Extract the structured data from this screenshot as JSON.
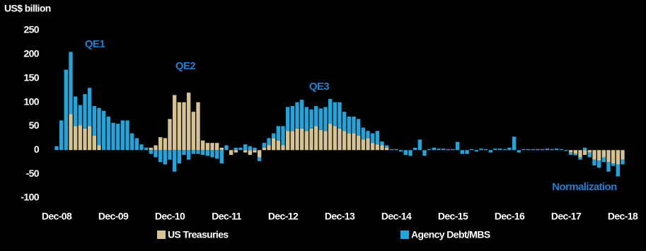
{
  "chart_data": {
    "type": "stacked_bar",
    "y_label": "US$ billion",
    "annotations": [
      "QE1",
      "QE2",
      "QE3",
      "Normalization"
    ],
    "categories": [
      "Dec-08",
      null,
      null,
      null,
      null,
      null,
      null,
      null,
      null,
      null,
      null,
      null,
      "Dec-09",
      null,
      null,
      null,
      null,
      null,
      null,
      null,
      null,
      null,
      null,
      null,
      "Dec-10",
      null,
      null,
      null,
      null,
      null,
      null,
      null,
      null,
      null,
      null,
      null,
      "Dec-11",
      null,
      null,
      null,
      null,
      null,
      null,
      null,
      null,
      null,
      null,
      null,
      "Dec-12",
      null,
      null,
      null,
      null,
      null,
      null,
      null,
      null,
      null,
      null,
      null,
      "Dec-13",
      null,
      null,
      null,
      null,
      null,
      null,
      null,
      null,
      null,
      null,
      null,
      "Dec-14",
      null,
      null,
      null,
      null,
      null,
      null,
      null,
      null,
      null,
      null,
      null,
      "Dec-15",
      null,
      null,
      null,
      null,
      null,
      null,
      null,
      null,
      null,
      null,
      null,
      "Dec-16",
      null,
      null,
      null,
      null,
      null,
      null,
      null,
      null,
      null,
      null,
      null,
      "Dec-17",
      null,
      null,
      null,
      null,
      null,
      null,
      null,
      null,
      null,
      null,
      null,
      "Dec-18"
    ],
    "series": [
      {
        "name": "US Treasuries",
        "color": "#d6c38f",
        "values": [
          0,
          0,
          0,
          75,
          50,
          52,
          45,
          50,
          30,
          10,
          0,
          0,
          0,
          0,
          0,
          0,
          0,
          0,
          0,
          0,
          5,
          10,
          27,
          25,
          65,
          115,
          100,
          100,
          120,
          80,
          100,
          20,
          15,
          15,
          15,
          5,
          0,
          -10,
          -5,
          0,
          -5,
          -10,
          -5,
          -15,
          5,
          10,
          25,
          20,
          10,
          40,
          40,
          45,
          45,
          40,
          45,
          50,
          42,
          40,
          55,
          50,
          45,
          40,
          35,
          35,
          30,
          22,
          25,
          15,
          12,
          10,
          5,
          0,
          0,
          0,
          0,
          0,
          0,
          0,
          0,
          0,
          0,
          0,
          0,
          0,
          0,
          0,
          0,
          0,
          0,
          0,
          0,
          0,
          0,
          0,
          0,
          0,
          0,
          0,
          0,
          0,
          0,
          0,
          0,
          0,
          0,
          0,
          0,
          0,
          0,
          -5,
          -8,
          -15,
          -10,
          -5,
          -20,
          -22,
          -15,
          -25,
          -28,
          -30,
          -20
        ]
      },
      {
        "name": "Agency Debt/MBS",
        "color": "#1fa7dd",
        "values": [
          8,
          62,
          168,
          130,
          62,
          42,
          72,
          80,
          62,
          78,
          82,
          70,
          57,
          55,
          62,
          62,
          35,
          25,
          12,
          5,
          -8,
          -15,
          -25,
          -30,
          -20,
          -45,
          -28,
          -10,
          -20,
          -8,
          -8,
          -10,
          -12,
          -15,
          -18,
          -28,
          10,
          0,
          5,
          5,
          12,
          8,
          5,
          -8,
          10,
          15,
          10,
          30,
          40,
          50,
          52,
          55,
          60,
          50,
          40,
          42,
          45,
          50,
          52,
          50,
          55,
          40,
          35,
          35,
          35,
          25,
          15,
          20,
          28,
          8,
          5,
          2,
          2,
          -3,
          -10,
          -12,
          5,
          22,
          -12,
          2,
          5,
          3,
          3,
          2,
          2,
          17,
          -8,
          -8,
          2,
          -3,
          3,
          2,
          -5,
          3,
          3,
          2,
          5,
          28,
          -5,
          2,
          2,
          2,
          2,
          2,
          3,
          2,
          3,
          2,
          -2,
          -5,
          -3,
          -5,
          5,
          -10,
          -12,
          -15,
          -10,
          -20,
          -5,
          -25,
          -10
        ]
      }
    ],
    "ylim": [
      -100,
      250
    ],
    "yticks": [
      -100,
      -50,
      0,
      50,
      100,
      150,
      200,
      250
    ],
    "grid": false
  }
}
